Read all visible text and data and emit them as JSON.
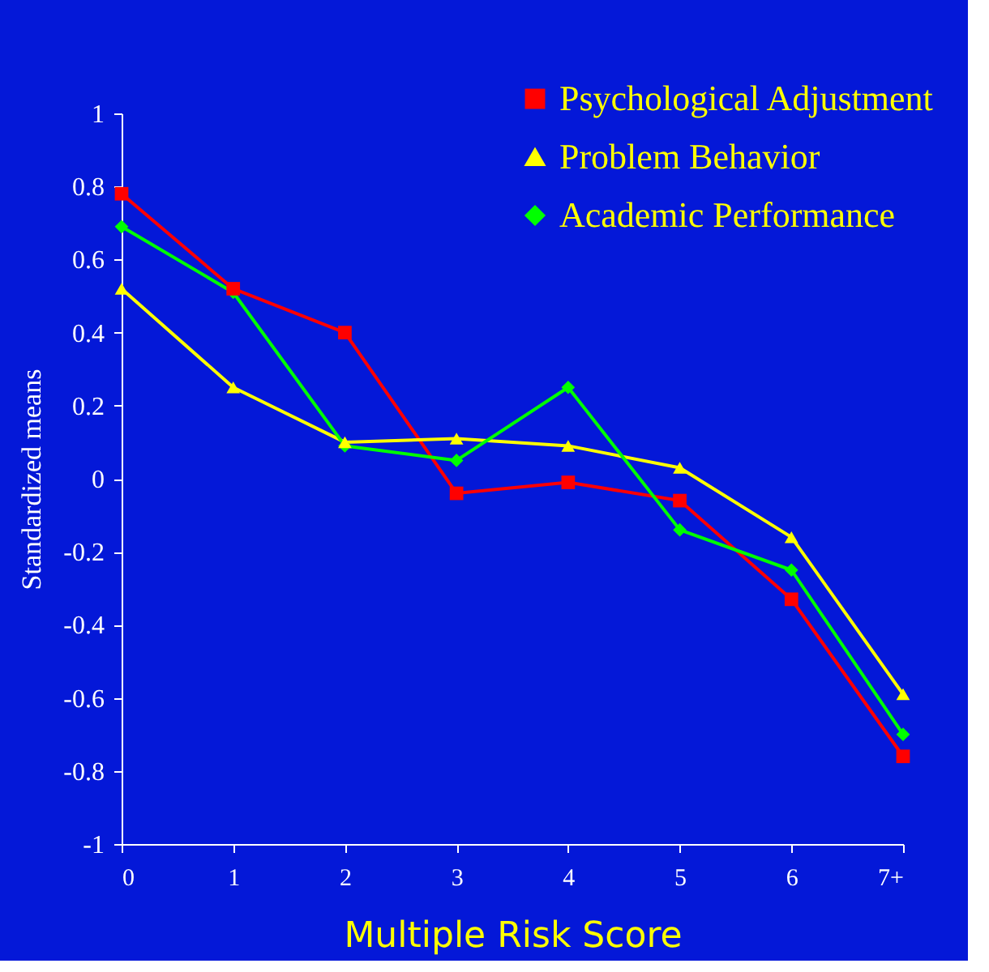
{
  "chart_data": {
    "type": "line",
    "xlabel": "Multiple Risk Score",
    "ylabel": "Standardized means",
    "categories": [
      "0",
      "1",
      "2",
      "3",
      "4",
      "5",
      "6",
      "7+"
    ],
    "ylim": [
      -1,
      1
    ],
    "yticks": [
      -1,
      -0.8,
      -0.6,
      -0.4,
      -0.2,
      0,
      0.2,
      0.4,
      0.6,
      0.8,
      1
    ],
    "grid": false,
    "legend": "top right",
    "line_style": "solid",
    "series": [
      {
        "name": "Psychological Adjustment",
        "color": "#ff0000",
        "marker": "square",
        "values": [
          0.78,
          0.52,
          0.4,
          -0.04,
          -0.01,
          -0.06,
          -0.33,
          -0.76
        ]
      },
      {
        "name": "Problem Behavior",
        "color": "#ffff00",
        "marker": "triangle",
        "values": [
          0.52,
          0.25,
          0.1,
          0.11,
          0.09,
          0.03,
          -0.16,
          -0.59
        ]
      },
      {
        "name": "Academic Performance",
        "color": "#00ff00",
        "marker": "diamond",
        "values": [
          0.69,
          0.51,
          0.09,
          0.05,
          0.25,
          -0.14,
          -0.25,
          -0.7
        ]
      }
    ]
  }
}
